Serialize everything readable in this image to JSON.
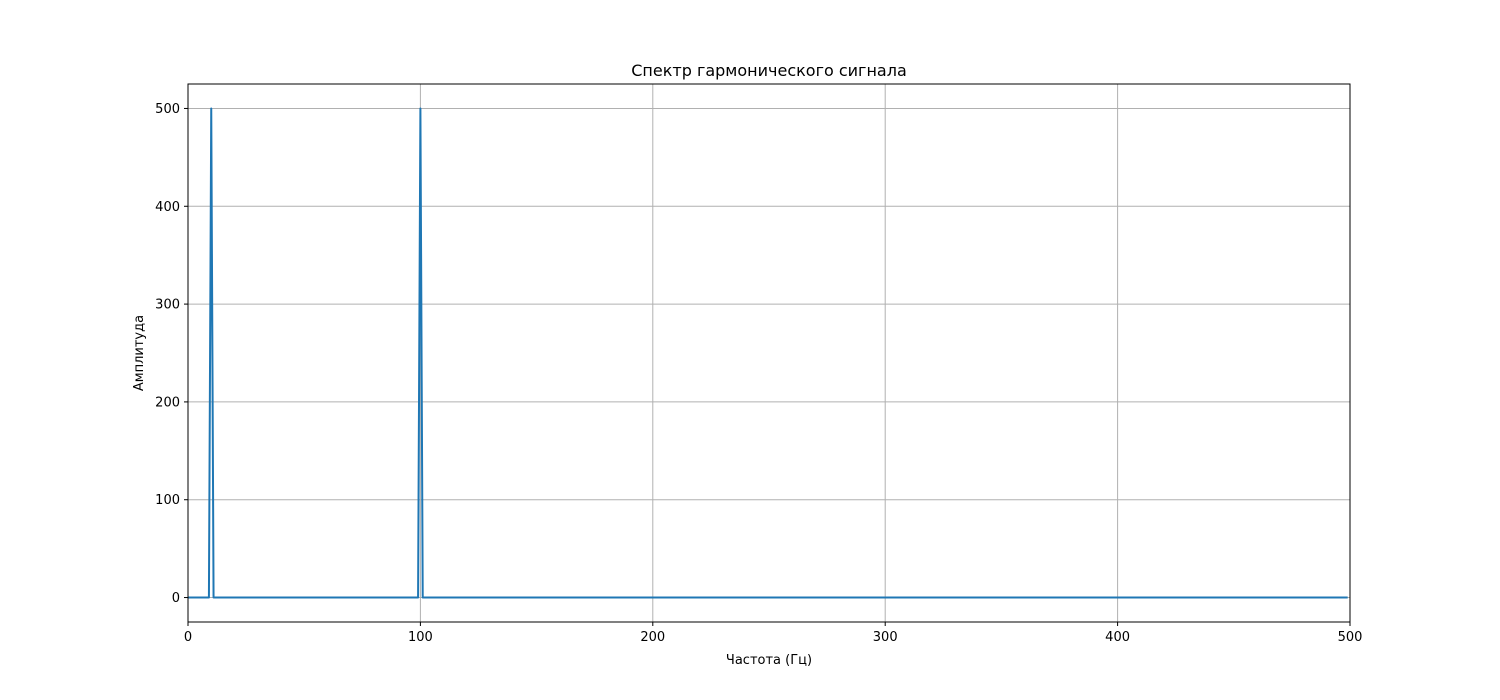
{
  "chart_data": {
    "type": "line",
    "title": "Спектр гармонического сигнала",
    "xlabel": "Частота (Гц)",
    "ylabel": "Амплитуда",
    "xlim": [
      0,
      500
    ],
    "ylim": [
      -25,
      525
    ],
    "x_ticks": [
      0,
      100,
      200,
      300,
      400,
      500
    ],
    "y_ticks": [
      0,
      100,
      200,
      300,
      400,
      500
    ],
    "grid": true,
    "line_color": "#1f77b4",
    "series": [
      {
        "x": [
          0,
          9,
          10,
          11,
          12,
          99,
          100,
          101,
          102,
          499
        ],
        "y": [
          0,
          0,
          500,
          0,
          0,
          0,
          500,
          0,
          0,
          0
        ]
      }
    ]
  }
}
